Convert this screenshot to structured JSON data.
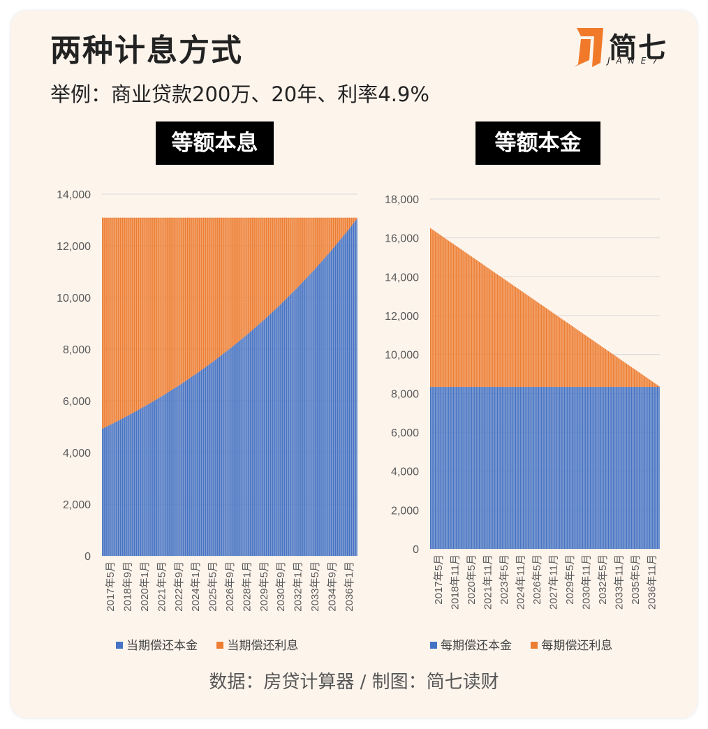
{
  "header": {
    "title": "两种计息方式",
    "subtitle": "举例：商业贷款200万、20年、利率4.9%"
  },
  "logo": {
    "text": "简七",
    "sub": "JANE7",
    "color": "#f07a2a"
  },
  "footer": {
    "source": "数据：房贷计算器 / 制图：简七读财"
  },
  "colors": {
    "principal": "#4472c4",
    "interest": "#ed7d31"
  },
  "chart_data": [
    {
      "type": "bar",
      "stacked": true,
      "title": "等额本息",
      "ylim": [
        0,
        14000
      ],
      "yticks": [
        "0",
        "2,000",
        "4,000",
        "6,000",
        "8,000",
        "10,000",
        "12,000",
        "14,000"
      ],
      "x_range": [
        "2017年5月",
        "2037年4月"
      ],
      "n_periods": 240,
      "xtick_labels": [
        "2017年5月",
        "2018年9月",
        "2020年1月",
        "2021年5月",
        "2022年9月",
        "2024年1月",
        "2025年5月",
        "2026年9月",
        "2028年1月",
        "2029年5月",
        "2030年9月",
        "2032年1月",
        "2033年5月",
        "2034年9月",
        "2036年1月"
      ],
      "monthly_payment": 13089,
      "principal_start": 4922,
      "principal_end": 13036,
      "legend": [
        "当期偿还本金",
        "当期偿还利息"
      ],
      "series": [
        {
          "name": "当期偿还本金",
          "note_range": [
            4922,
            13036
          ]
        },
        {
          "name": "当期偿还利息",
          "note_range": [
            8167,
            53
          ]
        }
      ]
    },
    {
      "type": "bar",
      "stacked": true,
      "title": "等额本金",
      "ylim": [
        0,
        18000
      ],
      "yticks": [
        "0",
        "2,000",
        "4,000",
        "6,000",
        "8,000",
        "10,000",
        "12,000",
        "14,000",
        "16,000",
        "18,000"
      ],
      "x_range": [
        "2017年5月",
        "2037年4月"
      ],
      "n_periods": 240,
      "xtick_labels": [
        "2017年5月",
        "2018年11月",
        "2020年5月",
        "2021年11月",
        "2023年5月",
        "2024年11月",
        "2026年5月",
        "2027年11月",
        "2029年5月",
        "2030年11月",
        "2032年5月",
        "2033年11月",
        "2035年5月",
        "2036年11月"
      ],
      "principal": 8333,
      "total_start": 16500,
      "total_end": 8367,
      "legend": [
        "每期偿还本金",
        "每期偿还利息"
      ],
      "series": [
        {
          "name": "每期偿还本金",
          "note_range": [
            8333,
            8333
          ]
        },
        {
          "name": "每期偿还利息",
          "note_range": [
            8167,
            34
          ]
        }
      ]
    }
  ]
}
